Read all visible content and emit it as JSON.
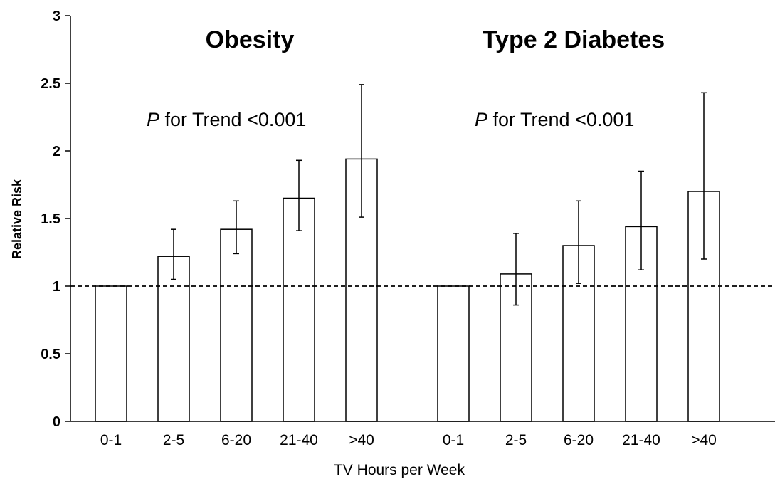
{
  "chart_data": {
    "type": "bar",
    "ylabel": "Relative Risk",
    "xlabel": "TV Hours per Week",
    "ylim": [
      0,
      3
    ],
    "yticks": [
      0,
      0.5,
      1,
      1.5,
      2,
      2.5,
      3
    ],
    "ytick_labels": [
      "0",
      "0.5",
      "1",
      "1.5",
      "2",
      "2.5",
      "3"
    ],
    "reference_line": 1,
    "grid": false,
    "legend": "none",
    "groups": [
      {
        "title": "Obesity",
        "annotation_p": "P",
        "annotation_rest": " for Trend <0.001",
        "categories": [
          "0-1",
          "2-5",
          "6-20",
          "21-40",
          ">40"
        ],
        "values": [
          1.0,
          1.22,
          1.42,
          1.65,
          1.94
        ],
        "err_low": [
          null,
          1.05,
          1.24,
          1.41,
          1.51
        ],
        "err_high": [
          null,
          1.42,
          1.63,
          1.93,
          2.49
        ]
      },
      {
        "title": "Type 2 Diabetes",
        "annotation_p": "P",
        "annotation_rest": " for Trend <0.001",
        "categories": [
          "0-1",
          "2-5",
          "6-20",
          "21-40",
          ">40"
        ],
        "values": [
          1.0,
          1.09,
          1.3,
          1.44,
          1.7
        ],
        "err_low": [
          null,
          0.86,
          1.02,
          1.12,
          1.2
        ],
        "err_high": [
          null,
          1.39,
          1.63,
          1.85,
          2.43
        ]
      }
    ]
  }
}
